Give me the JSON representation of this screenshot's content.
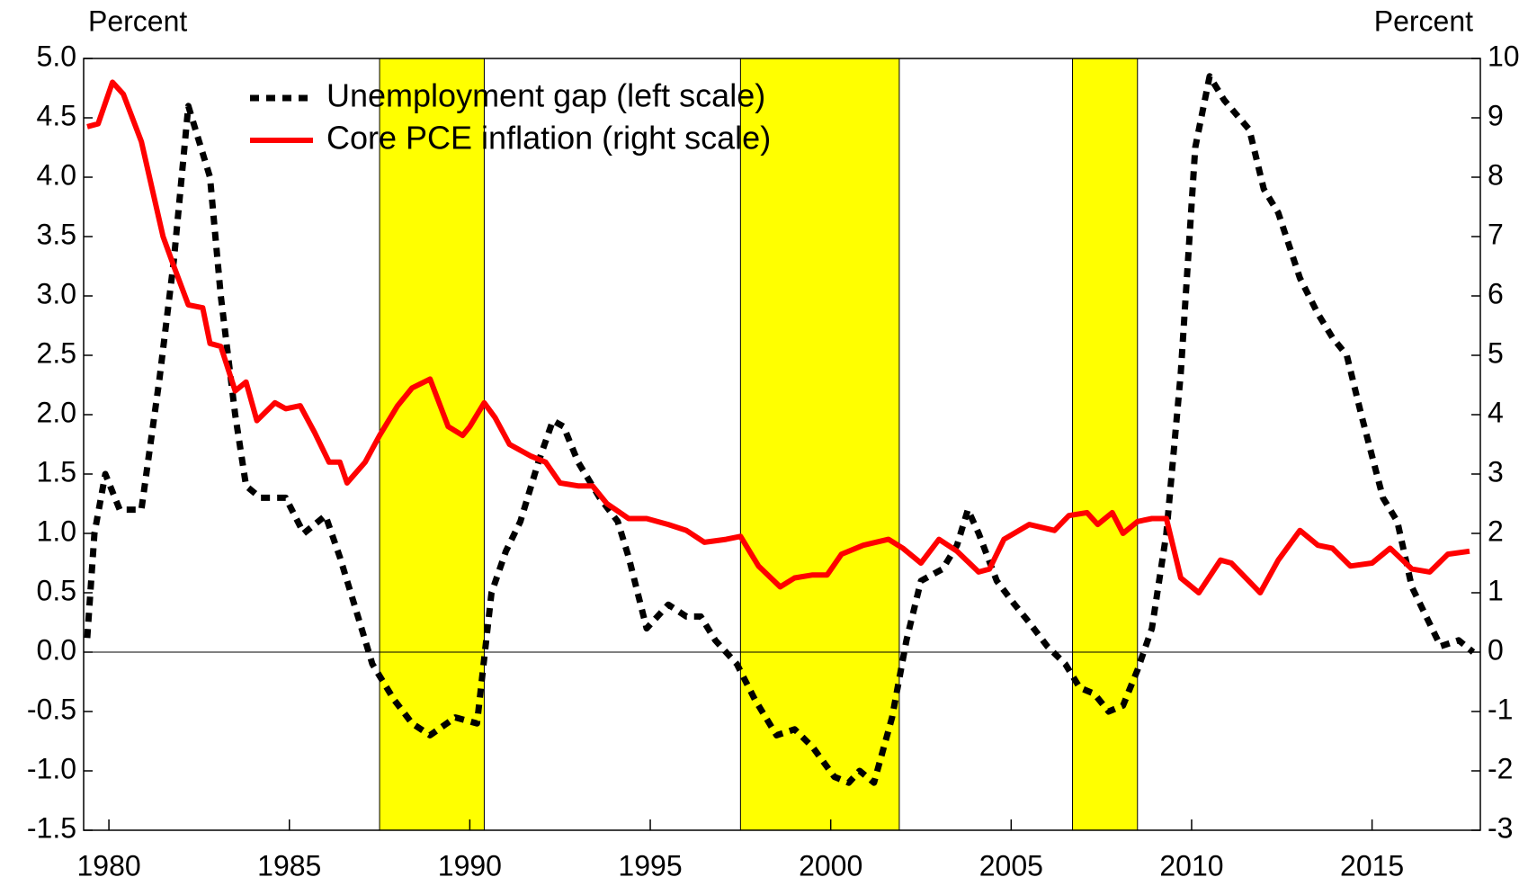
{
  "chart_data": {
    "type": "line",
    "ylabel": "Percent",
    "y2label": "Percent",
    "legend": "upper left",
    "xlim": [
      1979.3,
      2018.0
    ],
    "xticks": [
      1980,
      1985,
      1990,
      1995,
      2000,
      2005,
      2010,
      2015
    ],
    "ylim": [
      -1.5,
      5.0
    ],
    "yticks": [
      -1.5,
      {
        "value": -1.0,
        "label": "-1.0"
      },
      -0.5,
      {
        "value": 0.0,
        "label": "0.0"
      },
      0.5,
      {
        "value": 1.0,
        "label": "1.0"
      },
      1.5,
      {
        "value": 2.0,
        "label": "2.0"
      },
      2.5,
      {
        "value": 3.0,
        "label": "3.0"
      },
      3.5,
      {
        "value": 4.0,
        "label": "4.0"
      },
      4.5,
      {
        "value": 5.0,
        "label": "5.0"
      }
    ],
    "y2lim": [
      -3,
      10
    ],
    "y2ticks": [
      -3,
      -2,
      -1,
      0,
      1,
      2,
      3,
      4,
      5,
      6,
      7,
      8,
      9,
      10
    ],
    "shaded_color": "#ffff00",
    "shaded": [
      [
        1987.5,
        1990.4
      ],
      [
        1997.5,
        2001.9
      ],
      [
        2006.7,
        2008.5
      ]
    ],
    "series": [
      {
        "name": "Unemployment gap (left scale)",
        "color": "#000000",
        "dashed": true,
        "x": [
          1979.4,
          1979.6,
          1979.9,
          1980.3,
          1980.9,
          1981.4,
          1981.8,
          1982.2,
          1982.4,
          1982.8,
          1983.1,
          1983.5,
          1983.8,
          1984.2,
          1984.9,
          1985.4,
          1986.0,
          1986.4,
          1986.8,
          1987.3,
          1987.9,
          1988.4,
          1988.9,
          1989.6,
          1990.2,
          1990.6,
          1991.0,
          1991.4,
          1991.9,
          1992.3,
          1992.6,
          1993.0,
          1993.6,
          1994.1,
          1994.4,
          1994.9,
          1995.5,
          1996.0,
          1996.4,
          1996.8,
          1997.4,
          1997.9,
          1998.5,
          1999.0,
          1999.5,
          2000.1,
          2000.5,
          2000.8,
          2001.2,
          2001.7,
          2002.1,
          2002.5,
          2003.1,
          2003.5,
          2003.8,
          2004.1,
          2004.6,
          2005.1,
          2005.5,
          2006.0,
          2006.5,
          2006.9,
          2007.3,
          2007.7,
          2008.1,
          2008.5,
          2008.9,
          2009.3,
          2009.7,
          2010.1,
          2010.5,
          2010.9,
          2011.6,
          2012.0,
          2012.4,
          2013.0,
          2013.5,
          2013.9,
          2014.3,
          2014.7,
          2015.3,
          2015.7,
          2016.1,
          2016.5,
          2016.9,
          2017.4,
          2017.8
        ],
        "values": [
          0.12,
          1.0,
          1.5,
          1.2,
          1.2,
          2.3,
          3.3,
          4.6,
          4.4,
          4.0,
          3.0,
          2.0,
          1.4,
          1.3,
          1.3,
          1.0,
          1.15,
          0.8,
          0.4,
          -0.1,
          -0.4,
          -0.6,
          -0.7,
          -0.55,
          -0.6,
          0.5,
          0.85,
          1.1,
          1.6,
          1.95,
          1.9,
          1.6,
          1.3,
          1.1,
          0.8,
          0.2,
          0.4,
          0.3,
          0.3,
          0.1,
          -0.1,
          -0.4,
          -0.7,
          -0.65,
          -0.8,
          -1.05,
          -1.1,
          -1.0,
          -1.1,
          -0.55,
          0.1,
          0.6,
          0.7,
          0.9,
          1.2,
          1.0,
          0.6,
          0.4,
          0.25,
          0.05,
          -0.1,
          -0.3,
          -0.35,
          -0.5,
          -0.45,
          -0.15,
          0.2,
          1.0,
          2.35,
          4.25,
          4.85,
          4.65,
          4.4,
          3.9,
          3.7,
          3.15,
          2.85,
          2.65,
          2.5,
          2.0,
          1.3,
          1.1,
          0.55,
          0.3,
          0.05,
          0.1,
          0.0
        ]
      },
      {
        "name": "Core PCE inflation (right scale)",
        "color": "#ff0000",
        "axis": "y2",
        "x": [
          1979.4,
          1979.7,
          1980.1,
          1980.4,
          1980.9,
          1981.5,
          1981.8,
          1982.2,
          1982.6,
          1982.8,
          1983.1,
          1983.5,
          1983.8,
          1984.1,
          1984.6,
          1984.9,
          1985.3,
          1985.7,
          1986.1,
          1986.4,
          1986.6,
          1987.1,
          1987.5,
          1988.0,
          1988.4,
          1988.9,
          1989.4,
          1989.8,
          1990.0,
          1990.4,
          1990.7,
          1991.1,
          1991.7,
          1992.1,
          1992.5,
          1993.0,
          1993.4,
          1993.8,
          1994.4,
          1994.9,
          1995.5,
          1996.0,
          1996.5,
          1997.1,
          1997.5,
          1998.0,
          1998.6,
          1999.0,
          1999.5,
          1999.9,
          2000.3,
          2000.9,
          2001.6,
          2002.0,
          2002.5,
          2003.0,
          2003.5,
          2004.1,
          2004.4,
          2004.8,
          2005.5,
          2006.2,
          2006.6,
          2007.1,
          2007.4,
          2007.8,
          2008.1,
          2008.5,
          2008.9,
          2009.3,
          2009.7,
          2010.2,
          2010.8,
          2011.1,
          2011.5,
          2011.9,
          2012.4,
          2013.0,
          2013.5,
          2013.9,
          2014.4,
          2015.0,
          2015.5,
          2016.1,
          2016.6,
          2017.1,
          2017.7
        ],
        "values": [
          8.85,
          8.9,
          9.6,
          9.4,
          8.6,
          7.0,
          6.5,
          5.85,
          5.8,
          5.2,
          5.15,
          4.4,
          4.55,
          3.9,
          4.2,
          4.1,
          4.15,
          3.7,
          3.2,
          3.2,
          2.85,
          3.2,
          3.65,
          4.15,
          4.45,
          4.6,
          3.8,
          3.65,
          3.8,
          4.2,
          3.95,
          3.5,
          3.3,
          3.2,
          2.85,
          2.8,
          2.8,
          2.5,
          2.25,
          2.25,
          2.15,
          2.05,
          1.85,
          1.9,
          1.95,
          1.45,
          1.1,
          1.25,
          1.3,
          1.3,
          1.65,
          1.8,
          1.9,
          1.75,
          1.5,
          1.9,
          1.7,
          1.35,
          1.4,
          1.9,
          2.15,
          2.05,
          2.3,
          2.35,
          2.15,
          2.35,
          2.0,
          2.2,
          2.25,
          2.25,
          1.25,
          1.0,
          1.55,
          1.5,
          1.25,
          1.0,
          1.55,
          2.05,
          1.8,
          1.75,
          1.45,
          1.5,
          1.75,
          1.4,
          1.35,
          1.65,
          1.7
        ]
      }
    ]
  }
}
